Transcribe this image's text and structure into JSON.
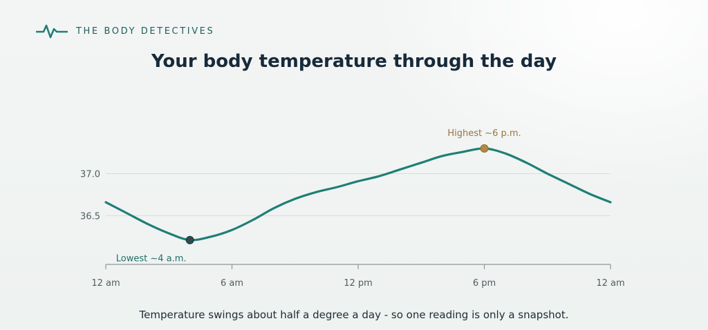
{
  "brand": {
    "name": "THE BODY DETECTIVES"
  },
  "title": "Your body temperature through the day",
  "caption": "Temperature swings about half a degree a day - so one reading is only a snapshot.",
  "colors": {
    "line": "#1f7e76",
    "grid": "#d8dedc",
    "axis": "#8d9697",
    "low_point": "#2f4b4c",
    "high_point": "#b58a3f",
    "low_text": "#1f6f69",
    "high_text": "#9a7440"
  },
  "chart_data": {
    "type": "line",
    "title": "Your body temperature through the day",
    "xlabel": "",
    "ylabel": "",
    "xlim": [
      0,
      24
    ],
    "ylim": [
      35.92,
      37.3
    ],
    "grid": true,
    "x_ticks": [
      0,
      6,
      12,
      18,
      24
    ],
    "x_tick_labels": [
      "12 am",
      "6 am",
      "12 pm",
      "6 pm",
      "12 am"
    ],
    "y_ticks": [
      36.5,
      37.0
    ],
    "y_tick_labels": [
      "36.5",
      "37.0"
    ],
    "x": [
      0,
      1,
      2,
      3,
      4,
      5,
      6,
      7,
      8,
      9,
      10,
      11,
      12,
      13,
      14,
      15,
      16,
      17,
      18,
      19,
      20,
      21,
      22,
      23,
      24
    ],
    "series": [
      {
        "values": [
          36.66,
          36.53,
          36.4,
          36.29,
          36.21,
          36.25,
          36.33,
          36.45,
          36.59,
          36.7,
          36.78,
          36.84,
          36.91,
          36.97,
          37.05,
          37.13,
          37.21,
          37.26,
          37.3,
          37.24,
          37.13,
          37.0,
          36.88,
          36.76,
          36.66
        ]
      }
    ],
    "annotations": [
      {
        "text": "Lowest ~4 a.m.",
        "x": 4,
        "y": 36.21,
        "kind": "low"
      },
      {
        "text": "Highest ~6 p.m.",
        "x": 18,
        "y": 37.3,
        "kind": "high"
      }
    ]
  }
}
